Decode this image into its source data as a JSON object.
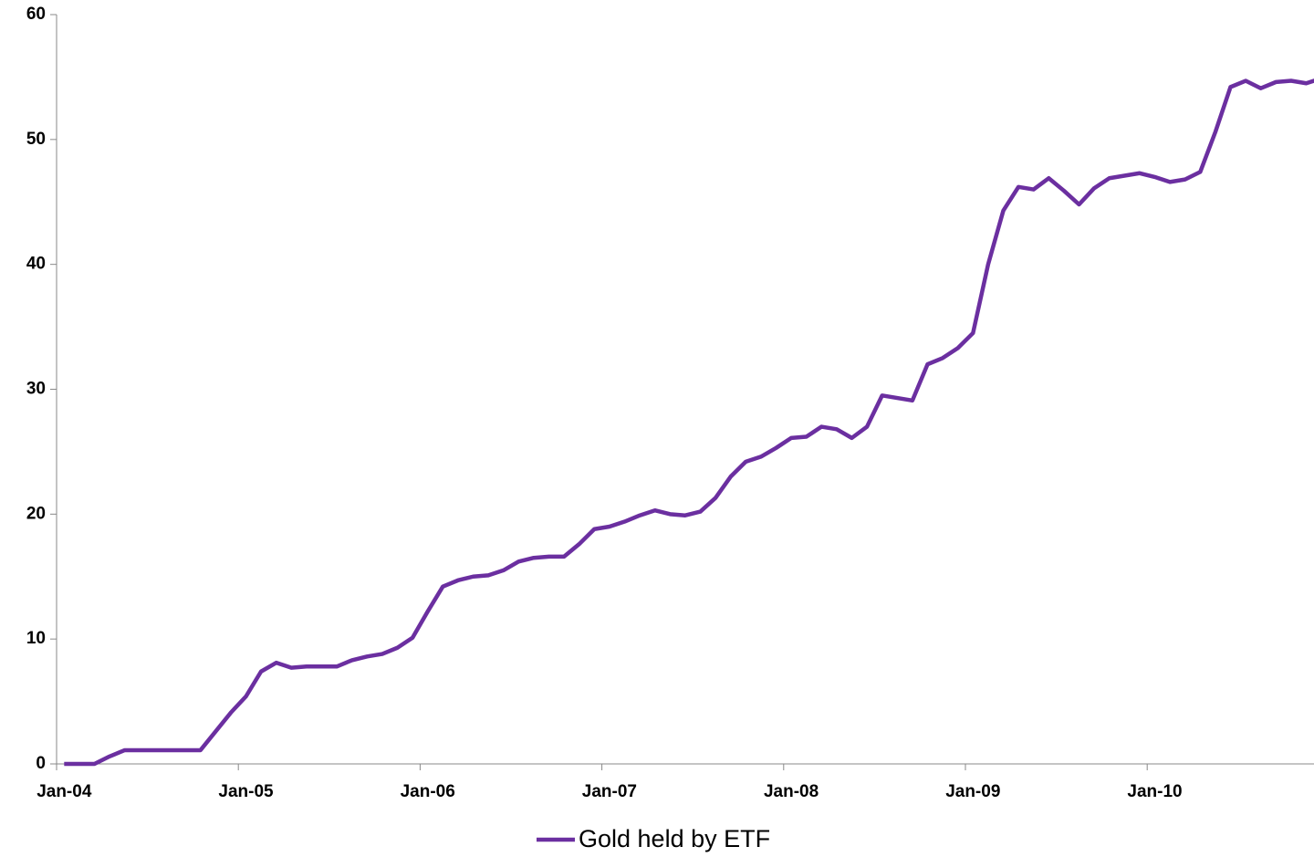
{
  "chart_data": {
    "type": "line",
    "categories": [
      "Jan-04",
      null,
      null,
      null,
      null,
      null,
      null,
      null,
      null,
      null,
      null,
      null,
      "Jan-05",
      null,
      null,
      null,
      null,
      null,
      null,
      null,
      null,
      null,
      null,
      null,
      "Jan-06",
      null,
      null,
      null,
      null,
      null,
      null,
      null,
      null,
      null,
      null,
      null,
      "Jan-07",
      null,
      null,
      null,
      null,
      null,
      null,
      null,
      null,
      null,
      null,
      null,
      "Jan-08",
      null,
      null,
      null,
      null,
      null,
      null,
      null,
      null,
      null,
      null,
      null,
      "Jan-09",
      null,
      null,
      null,
      null,
      null,
      null,
      null,
      null,
      null,
      null,
      null,
      "Jan-10",
      null,
      null,
      null,
      null,
      null,
      null,
      null,
      null,
      null,
      null,
      null
    ],
    "series": [
      {
        "name": "Gold held by ETF",
        "color": "#6b2fa0",
        "values": [
          0,
          0,
          0,
          0.6,
          1.1,
          1.1,
          1.1,
          1.1,
          1.1,
          1.1,
          2.6,
          4.1,
          5.4,
          7.4,
          8.1,
          7.7,
          7.8,
          7.8,
          7.8,
          8.3,
          8.6,
          8.8,
          9.3,
          10.1,
          12.2,
          14.2,
          14.7,
          15.0,
          15.1,
          15.5,
          16.2,
          16.5,
          16.6,
          16.6,
          17.6,
          18.8,
          19.0,
          19.4,
          19.9,
          20.3,
          20.0,
          19.9,
          20.2,
          21.3,
          23.0,
          24.2,
          24.6,
          25.3,
          26.1,
          26.2,
          27.0,
          26.8,
          26.1,
          27.0,
          29.5,
          29.3,
          29.1,
          32.0,
          32.5,
          33.3,
          34.5,
          40.0,
          44.3,
          46.2,
          46.0,
          46.9,
          45.9,
          44.8,
          46.1,
          46.9,
          47.1,
          47.3,
          47.0,
          46.6,
          46.8,
          47.4,
          50.6,
          54.2,
          54.7,
          54.1,
          54.6,
          54.7,
          54.5,
          54.9
        ]
      }
    ],
    "ylim": [
      0,
      60
    ],
    "yticks": [
      0,
      10,
      20,
      30,
      40,
      50,
      60
    ],
    "legend": "bottom"
  }
}
